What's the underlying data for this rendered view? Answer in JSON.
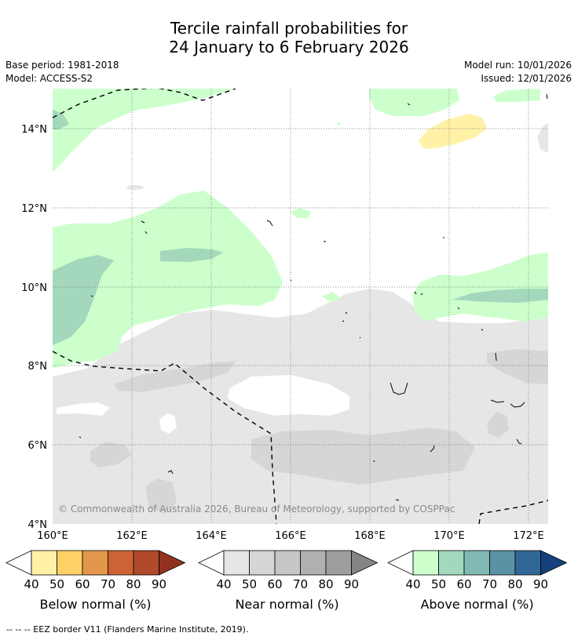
{
  "title": {
    "line1": "Tercile rainfall probabilities for",
    "line2": "24 January to 6 February 2026"
  },
  "info": {
    "base_period": "Base period: 1981-2018",
    "model": "Model: ACCESS-S2",
    "model_run": "Model run: 10/01/2026",
    "issued": "Issued: 12/01/2026"
  },
  "axes": {
    "lat_labels": [
      "14°N",
      "12°N",
      "10°N",
      "8°N",
      "6°N",
      "4°N"
    ],
    "lon_labels": [
      "160°E",
      "162°E",
      "164°E",
      "166°E",
      "168°E",
      "170°E",
      "172°E"
    ]
  },
  "copyright": "© Commonwealth of Australia 2026, Bureau of Meteorology, supported by COSPPac",
  "legends": [
    {
      "name": "below",
      "label": "Below normal (%)",
      "ticks": [
        "40",
        "50",
        "60",
        "70",
        "80",
        "90"
      ],
      "colors": [
        "#fff1a6",
        "#ffd066",
        "#e3974a",
        "#cd6334",
        "#b04a2a",
        "#913220"
      ]
    },
    {
      "name": "near",
      "label": "Near normal (%)",
      "ticks": [
        "40",
        "50",
        "60",
        "70",
        "80",
        "90"
      ],
      "colors": [
        "#e6e6e6",
        "#d6d6d6",
        "#c6c6c6",
        "#b0b0b0",
        "#9e9e9e",
        "#858585"
      ]
    },
    {
      "name": "above",
      "label": "Above normal (%)",
      "ticks": [
        "40",
        "50",
        "60",
        "70",
        "80",
        "90"
      ],
      "colors": [
        "#ccffcc",
        "#a3d8bc",
        "#82b9b4",
        "#5a91a3",
        "#316797",
        "#14417c"
      ]
    }
  ],
  "footnote": "--  --  -- EEZ border V11 (Flanders Marine Institute, 2019)."
}
